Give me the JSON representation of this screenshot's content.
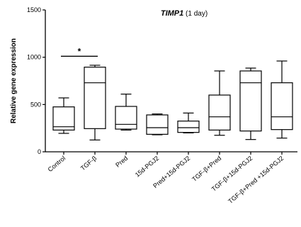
{
  "chart_data": {
    "type": "box",
    "title_gene": "TIMP1",
    "title_suffix": " (1 day)",
    "ylabel": "Relative gene expression",
    "ylim": [
      0,
      1500
    ],
    "yticks": [
      0,
      500,
      1000,
      1500
    ],
    "categories": [
      "Control",
      "TGF-β",
      "Pred",
      "15d-PGJ2",
      "Pred+15d-PGJ2",
      "TGF-β+Pred",
      "TGF-β+15d-PGJ2",
      "TGF-β+Pred +15d-PGJ2"
    ],
    "boxes": [
      {
        "min": 195,
        "q1": 230,
        "median": 265,
        "q3": 475,
        "max": 570
      },
      {
        "min": 125,
        "q1": 245,
        "median": 730,
        "q3": 895,
        "max": 915
      },
      {
        "min": 230,
        "q1": 240,
        "median": 290,
        "q3": 480,
        "max": 610
      },
      {
        "min": 180,
        "q1": 185,
        "median": 255,
        "q3": 390,
        "max": 400
      },
      {
        "min": 200,
        "q1": 205,
        "median": 255,
        "q3": 325,
        "max": 410
      },
      {
        "min": 175,
        "q1": 230,
        "median": 370,
        "q3": 600,
        "max": 855
      },
      {
        "min": 130,
        "q1": 220,
        "median": 730,
        "q3": 855,
        "max": 885
      },
      {
        "min": 145,
        "q1": 235,
        "median": 370,
        "q3": 730,
        "max": 960
      }
    ],
    "significance": {
      "from": 0,
      "to": 1,
      "y": 1010,
      "label": "*"
    },
    "grid": false,
    "colors": {
      "box_fill": "#ffffff",
      "stroke": "#000000"
    }
  }
}
